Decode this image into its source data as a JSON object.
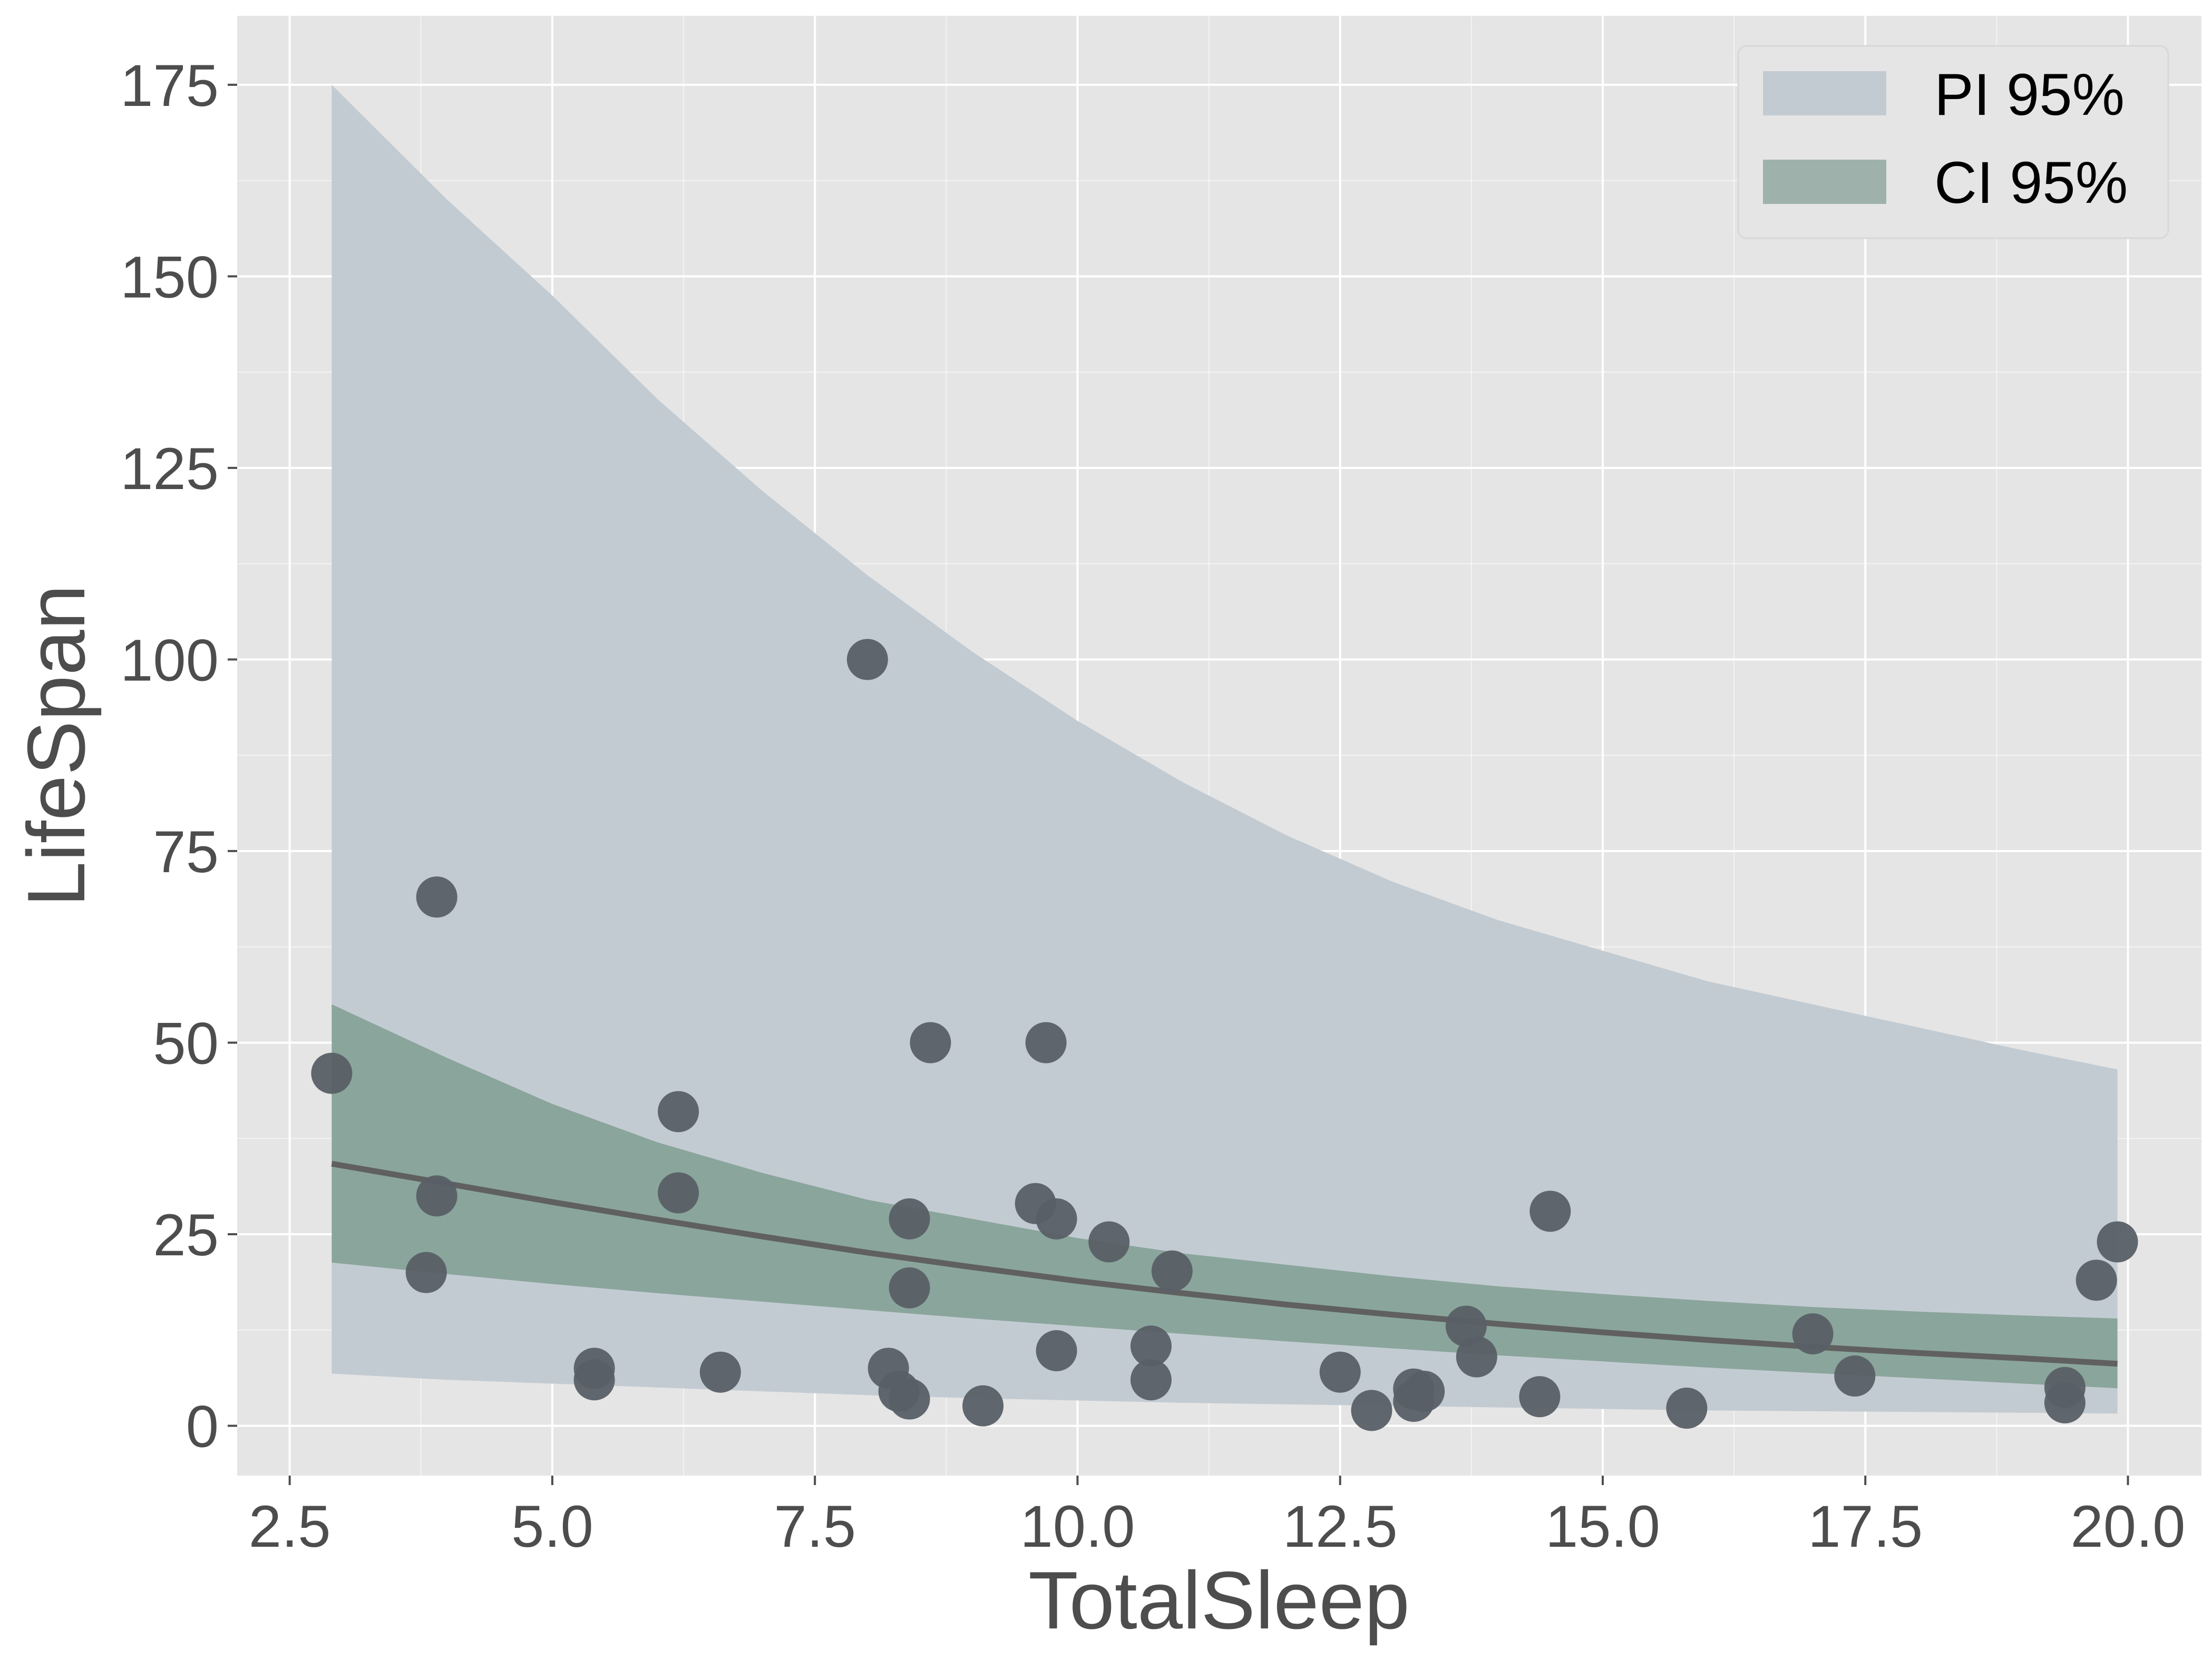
{
  "chart_data": {
    "type": "scatter",
    "xlabel": "TotalSleep",
    "ylabel": "LifeSpan",
    "xlim": [
      2.0,
      20.7
    ],
    "ylim": [
      -6.5,
      184
    ],
    "grid": true,
    "legend_position": "top-right",
    "x_ticks": [
      "2.5",
      "5.0",
      "7.5",
      "10.0",
      "12.5",
      "15.0",
      "17.5",
      "20.0"
    ],
    "x_tick_values": [
      2.5,
      5.0,
      7.5,
      10.0,
      12.5,
      15.0,
      17.5,
      20.0
    ],
    "y_ticks": [
      "0",
      "25",
      "50",
      "75",
      "100",
      "125",
      "150",
      "175"
    ],
    "y_tick_values": [
      0,
      25,
      50,
      75,
      100,
      125,
      150,
      175
    ],
    "legend": [
      {
        "label": "PI 95%",
        "color": "#c3cbd2"
      },
      {
        "label": "CI 95%",
        "color": "#9eb2ab"
      }
    ],
    "colors": {
      "panel_bg": "#e5e5e5",
      "grid": "#ffffff",
      "pi_band": "#c3cbd2",
      "ci_band": "#8aa59c",
      "line": "#606060",
      "points": "#585f66"
    },
    "band_x": [
      2.9,
      4.0,
      5.0,
      6.0,
      7.0,
      8.0,
      9.0,
      10.0,
      11.0,
      12.0,
      13.0,
      14.0,
      15.0,
      16.0,
      17.0,
      18.0,
      19.0,
      19.9
    ],
    "pi_upper": [
      175,
      160,
      147.5,
      134,
      122,
      111,
      101,
      92,
      84,
      77,
      71,
      66,
      62,
      58,
      55,
      52,
      49,
      46.5
    ],
    "pi_lower": [
      6.8,
      6.0,
      5.5,
      5.0,
      4.5,
      4.0,
      3.6,
      3.3,
      3.0,
      2.8,
      2.6,
      2.4,
      2.2,
      2.0,
      1.9,
      1.8,
      1.7,
      1.6
    ],
    "ci_upper": [
      55,
      48,
      42,
      37,
      33,
      29.5,
      27,
      24.5,
      22.5,
      21,
      19.5,
      18.2,
      17.2,
      16.3,
      15.5,
      14.9,
      14.4,
      14.0
    ],
    "ci_lower": [
      21.3,
      19.8,
      18.5,
      17.3,
      16.2,
      15.1,
      14.0,
      13.0,
      12.0,
      11.0,
      10.1,
      9.2,
      8.4,
      7.6,
      6.9,
      6.2,
      5.5,
      4.9
    ],
    "fit_line": {
      "x": [
        2.9,
        4.0,
        5.0,
        6.0,
        7.0,
        8.0,
        9.0,
        10.0,
        11.0,
        12.0,
        13.0,
        14.0,
        15.0,
        16.0,
        17.0,
        18.0,
        19.0,
        19.9
      ],
      "y": [
        34.2,
        31.6,
        29.2,
        26.9,
        24.7,
        22.6,
        20.7,
        18.9,
        17.3,
        15.8,
        14.5,
        13.3,
        12.2,
        11.2,
        10.3,
        9.5,
        8.8,
        8.1
      ]
    },
    "points": {
      "x": [
        2.9,
        3.9,
        3.9,
        3.8,
        5.4,
        5.4,
        6.2,
        6.2,
        6.6,
        8.0,
        8.2,
        8.3,
        8.4,
        8.4,
        8.4,
        8.6,
        9.1,
        9.6,
        9.7,
        9.8,
        9.8,
        10.3,
        10.7,
        10.7,
        10.9,
        12.5,
        12.8,
        13.2,
        13.2,
        13.3,
        13.7,
        13.8,
        14.4,
        14.5,
        15.8,
        17.0,
        17.4,
        19.4,
        19.4,
        19.7,
        19.9
      ],
      "y": [
        46,
        69,
        30,
        20,
        7.5,
        6,
        41,
        30.4,
        7,
        100,
        7.5,
        4.5,
        27,
        18,
        3.5,
        50,
        2.6,
        29,
        50,
        27,
        9.8,
        24,
        10.4,
        6,
        20.2,
        7,
        2,
        4.8,
        3.2,
        4.5,
        13,
        9,
        3.8,
        28,
        2.3,
        12,
        6.5,
        5,
        3,
        19,
        24
      ]
    }
  }
}
